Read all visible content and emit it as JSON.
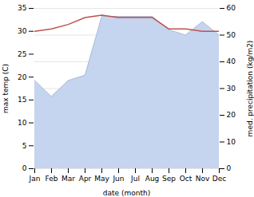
{
  "chart_data": {
    "type": "line",
    "categories": [
      "Jan",
      "Feb",
      "Mar",
      "Apr",
      "May",
      "Jun",
      "Jul",
      "Aug",
      "Sep",
      "Oct",
      "Nov",
      "Dec"
    ],
    "xlabel": "date (month)",
    "series": [
      {
        "name": "max temp (C)",
        "type": "line",
        "color": "#c0504d",
        "values": [
          30.0,
          30.5,
          31.5,
          33.0,
          33.5,
          33.0,
          33.0,
          33.0,
          30.5,
          30.5,
          30.0,
          30.0
        ]
      },
      {
        "name": "med. precipitation (kg/m2)",
        "type": "area",
        "axis": "y2",
        "color": "#c5d4ef",
        "values": [
          33,
          27,
          33,
          35,
          57,
          57,
          57,
          57,
          52,
          50,
          55,
          50
        ]
      }
    ],
    "ylim": [
      0,
      35
    ],
    "yticks": [
      0,
      5,
      10,
      15,
      20,
      25,
      30,
      35
    ],
    "y2lim": [
      0,
      60
    ],
    "y2ticks": [
      0,
      10,
      20,
      30,
      40,
      50,
      60
    ],
    "grid": true
  }
}
